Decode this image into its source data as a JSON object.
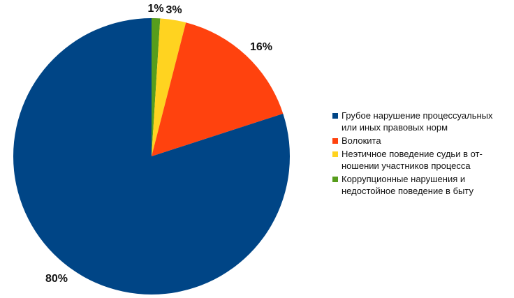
{
  "chart_data": {
    "type": "pie",
    "categories": [
      "Грубое нарушение процессуальных или иных правовых норм",
      "Волокита",
      "Неэтичное поведение судьи в от-ношении участников процесса",
      "Коррупционные нарушения и недостойное поведение в быту"
    ],
    "values": [
      80,
      16,
      3,
      1
    ],
    "value_labels": [
      "80%",
      "16%",
      "3%",
      "1%"
    ],
    "colors": [
      "#004586",
      "#ff420e",
      "#ffd320",
      "#579d1c"
    ],
    "legend": {
      "placement": "right",
      "items": [
        {
          "lines": [
            "Грубое нарушение процессуальных",
            "или иных правовых норм"
          ],
          "color": "#004586"
        },
        {
          "lines": [
            "Волокита"
          ],
          "color": "#ff420e"
        },
        {
          "lines": [
            "Неэтичное поведение судьи в от-",
            "ношении участников процесса"
          ],
          "color": "#ffd320"
        },
        {
          "lines": [
            "Коррупционные нарушения и",
            "недостойное поведение в быту"
          ],
          "color": "#579d1c"
        }
      ]
    }
  }
}
